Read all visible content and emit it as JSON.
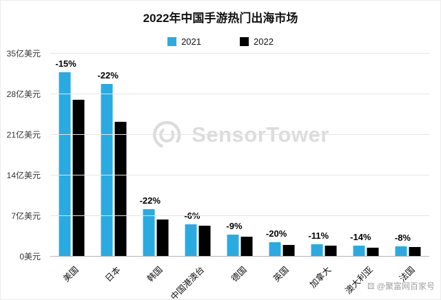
{
  "title": "2022年中国手游热门出海市场",
  "watermark": {
    "brand": "SensorTower"
  },
  "credit": "⚄ @聚富网百家号",
  "chart_data": {
    "type": "bar",
    "title": "2022年中国手游热门出海市场",
    "categories": [
      "美国",
      "日本",
      "韩国",
      "中国港澳台",
      "德国",
      "英国",
      "加拿大",
      "澳大利亚",
      "法国"
    ],
    "series": [
      {
        "name": "2021",
        "color": "#29abe2",
        "values": [
          31.8,
          29.8,
          8.2,
          5.6,
          3.8,
          2.5,
          2.1,
          1.9,
          1.8
        ]
      },
      {
        "name": "2022",
        "color": "#000000",
        "values": [
          27.0,
          23.2,
          6.4,
          5.3,
          3.4,
          2.0,
          1.9,
          1.6,
          1.65
        ]
      }
    ],
    "change_labels": [
      "-15%",
      "-22%",
      "-22%",
      "-6%",
      "-9%",
      "-20%",
      "-11%",
      "-14%",
      "-8%"
    ],
    "y_ticks": [
      "35亿美元",
      "28亿美元",
      "21亿美元",
      "14亿美元",
      "7亿美元",
      "0美元"
    ],
    "y_tick_values": [
      35,
      28,
      21,
      14,
      7,
      0
    ],
    "ylim": [
      0,
      35
    ],
    "grid": true,
    "legend_position": "top",
    "xlabel": "",
    "ylabel": ""
  }
}
